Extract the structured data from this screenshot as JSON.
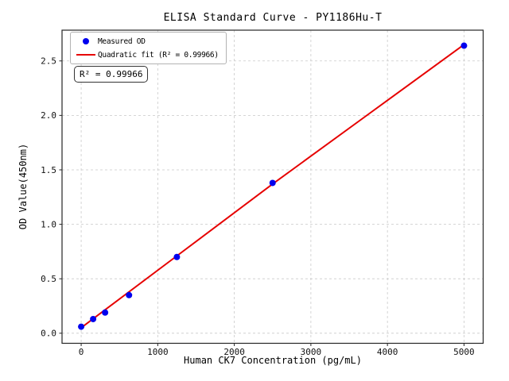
{
  "chart_data": {
    "type": "scatter",
    "title": "ELISA Standard Curve - PY1186Hu-T",
    "xlabel": "Human CK7 Concentration (pg/mL)",
    "ylabel": "OD Value(450nm)",
    "xlim": [
      -250,
      5250
    ],
    "ylim": [
      -0.0925,
      2.7825
    ],
    "x_ticks": {
      "values": [
        0,
        1000,
        2000,
        3000,
        4000,
        5000
      ],
      "labels": [
        "0",
        "1000",
        "2000",
        "3000",
        "4000",
        "5000"
      ]
    },
    "y_ticks": {
      "values": [
        0.0,
        0.5,
        1.0,
        1.5,
        2.0,
        2.5
      ],
      "labels": [
        "0.0",
        "0.5",
        "1.0",
        "1.5",
        "2.0",
        "2.5"
      ]
    },
    "grid": true,
    "grid_style": "dashed",
    "grid_color": "#c9c9c9",
    "frame_color": "#262626",
    "background": "#ffffff",
    "annotation": "R² = 0.99966",
    "r_squared": 0.99966,
    "legend": {
      "position": "upper-left",
      "entries": [
        {
          "label": "Measured OD",
          "marker": "dot",
          "color": "#0000ee"
        },
        {
          "label": "Quadratic fit (R² = 0.99966)",
          "marker": "line",
          "color": "#e60000"
        }
      ]
    },
    "series": [
      {
        "name": "Measured OD",
        "type": "scatter",
        "color": "#0000ee",
        "marker_radius": 4,
        "x": [
          0,
          156.25,
          312.5,
          625,
          1250,
          2500,
          5000
        ],
        "y": [
          0.06,
          0.13,
          0.19,
          0.35,
          0.7,
          1.38,
          2.64
        ]
      },
      {
        "name": "Quadratic fit",
        "type": "line",
        "color": "#e60000",
        "line_width": 2,
        "x": [
          0,
          1250,
          2500,
          3750,
          5000
        ],
        "y": [
          0.05,
          0.71,
          1.37,
          2.01,
          2.65
        ]
      }
    ]
  }
}
